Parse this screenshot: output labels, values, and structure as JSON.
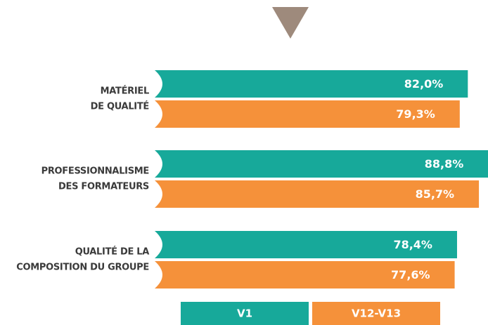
{
  "chart_data": {
    "type": "barh",
    "categories": [
      [
        "MATÉRIEL",
        "DE QUALITÉ"
      ],
      [
        "PROFESSIONNALISME",
        "DES FORMATEURS"
      ],
      [
        "QUALITÉ DE LA",
        "COMPOSITION DU GROUPE"
      ]
    ],
    "series": [
      {
        "name": "V1",
        "color": "#17a99a",
        "values": [
          82.0,
          88.8,
          78.4
        ],
        "value_labels": [
          "82,0%",
          "88,8%",
          "78,4%"
        ]
      },
      {
        "name": "V12-V13",
        "color": "#f5913a",
        "values": [
          79.3,
          85.7,
          77.6
        ],
        "value_labels": [
          "79,3%",
          "85,7%",
          "77,6%"
        ]
      }
    ]
  }
}
